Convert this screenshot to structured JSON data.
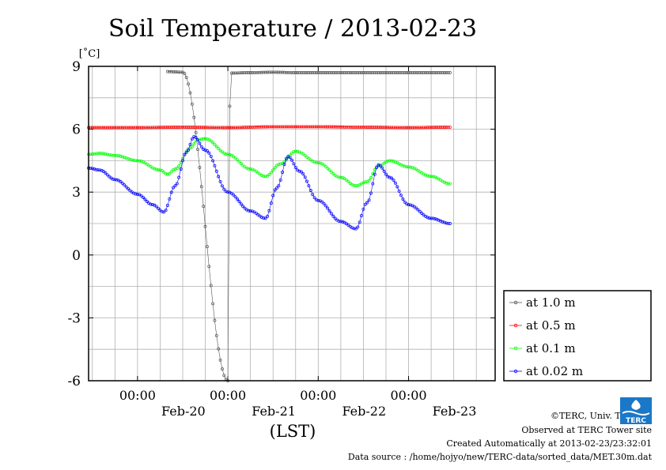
{
  "chart_data": {
    "type": "scatter",
    "title": "Soil Temperature / 2013-02-23",
    "ylabel": "[˚C]",
    "xlabel": "(LST)",
    "ylim": [
      -6,
      9
    ],
    "yticks": [
      9,
      6,
      3,
      0,
      -3,
      -6
    ],
    "ytick_labels": [
      "9",
      "6",
      "3",
      "0",
      "-3",
      "-6"
    ],
    "xlim": [
      "2013-02-19 11:00",
      "2013-02-23 23:00"
    ],
    "xticks": [
      {
        "time": "2013-02-20 00:00",
        "top": "00:00",
        "bottom": "Feb-20"
      },
      {
        "time": "2013-02-21 00:00",
        "top": "00:00",
        "bottom": "Feb-21"
      },
      {
        "time": "2013-02-22 00:00",
        "top": "00:00",
        "bottom": "Feb-22"
      },
      {
        "time": "2013-02-23 00:00",
        "top": "00:00",
        "bottom": "Feb-23"
      }
    ],
    "grid": true,
    "legend_position": "right",
    "series": [
      {
        "name": "at 1.0 m",
        "color": "#555555",
        "points": [
          [
            "2013-02-20 08:00",
            8.75
          ],
          [
            "2013-02-20 12:00",
            8.72
          ],
          [
            "2013-02-21 00:00",
            -6.0
          ],
          [
            "2013-02-21 00:30",
            7.1
          ],
          [
            "2013-02-21 01:00",
            8.68
          ],
          [
            "2013-02-21 06:00",
            8.7
          ],
          [
            "2013-02-21 12:00",
            8.72
          ],
          [
            "2013-02-21 18:00",
            8.7
          ],
          [
            "2013-02-22 00:00",
            8.7
          ],
          [
            "2013-02-22 06:00",
            8.7
          ],
          [
            "2013-02-22 12:00",
            8.7
          ],
          [
            "2013-02-22 18:00",
            8.7
          ],
          [
            "2013-02-23 00:00",
            8.7
          ],
          [
            "2013-02-23 06:00",
            8.7
          ],
          [
            "2013-02-23 11:00",
            8.7
          ]
        ]
      },
      {
        "name": "at 0.5 m",
        "color": "#ff0000",
        "points": [
          [
            "2013-02-19 11:00",
            6.08
          ],
          [
            "2013-02-20 00:00",
            6.08
          ],
          [
            "2013-02-20 12:00",
            6.1
          ],
          [
            "2013-02-21 00:00",
            6.08
          ],
          [
            "2013-02-21 12:00",
            6.12
          ],
          [
            "2013-02-22 00:00",
            6.12
          ],
          [
            "2013-02-22 12:00",
            6.1
          ],
          [
            "2013-02-23 00:00",
            6.08
          ],
          [
            "2013-02-23 11:00",
            6.1
          ]
        ]
      },
      {
        "name": "at 0.1 m",
        "color": "#00ff00",
        "points": [
          [
            "2013-02-19 11:00",
            4.8
          ],
          [
            "2013-02-19 14:00",
            4.85
          ],
          [
            "2013-02-19 18:00",
            4.75
          ],
          [
            "2013-02-20 00:00",
            4.5
          ],
          [
            "2013-02-20 06:00",
            4.05
          ],
          [
            "2013-02-20 08:00",
            3.85
          ],
          [
            "2013-02-20 10:00",
            4.1
          ],
          [
            "2013-02-20 14:00",
            5.1
          ],
          [
            "2013-02-20 16:00",
            5.5
          ],
          [
            "2013-02-20 18:00",
            5.55
          ],
          [
            "2013-02-21 00:00",
            4.8
          ],
          [
            "2013-02-21 06:00",
            4.1
          ],
          [
            "2013-02-21 10:00",
            3.75
          ],
          [
            "2013-02-21 14:00",
            4.35
          ],
          [
            "2013-02-21 18:00",
            4.95
          ],
          [
            "2013-02-22 00:00",
            4.4
          ],
          [
            "2013-02-22 06:00",
            3.7
          ],
          [
            "2013-02-22 10:00",
            3.3
          ],
          [
            "2013-02-22 13:00",
            3.5
          ],
          [
            "2013-02-22 16:00",
            4.25
          ],
          [
            "2013-02-22 19:00",
            4.5
          ],
          [
            "2013-02-23 00:00",
            4.2
          ],
          [
            "2013-02-23 06:00",
            3.75
          ],
          [
            "2013-02-23 11:00",
            3.4
          ]
        ]
      },
      {
        "name": "at 0.02 m",
        "color": "#0000ff",
        "points": [
          [
            "2013-02-19 11:00",
            4.15
          ],
          [
            "2013-02-19 14:00",
            4.05
          ],
          [
            "2013-02-19 18:00",
            3.6
          ],
          [
            "2013-02-20 00:00",
            2.9
          ],
          [
            "2013-02-20 04:00",
            2.4
          ],
          [
            "2013-02-20 07:00",
            2.05
          ],
          [
            "2013-02-20 10:00",
            3.3
          ],
          [
            "2013-02-20 13:00",
            4.9
          ],
          [
            "2013-02-20 15:00",
            5.65
          ],
          [
            "2013-02-20 18:00",
            5.0
          ],
          [
            "2013-02-21 00:00",
            3.0
          ],
          [
            "2013-02-21 06:00",
            2.1
          ],
          [
            "2013-02-21 10:00",
            1.75
          ],
          [
            "2013-02-21 13:00",
            3.2
          ],
          [
            "2013-02-21 16:00",
            4.7
          ],
          [
            "2013-02-21 19:00",
            4.0
          ],
          [
            "2013-02-22 00:00",
            2.6
          ],
          [
            "2013-02-22 06:00",
            1.6
          ],
          [
            "2013-02-22 10:00",
            1.25
          ],
          [
            "2013-02-22 13:00",
            2.5
          ],
          [
            "2013-02-22 16:00",
            4.3
          ],
          [
            "2013-02-22 19:00",
            3.7
          ],
          [
            "2013-02-23 00:00",
            2.4
          ],
          [
            "2013-02-23 06:00",
            1.75
          ],
          [
            "2013-02-23 11:00",
            1.5
          ]
        ]
      }
    ]
  },
  "footer": {
    "copyright": "©TERC, Univ. Tsukuba",
    "site": "Observed at TERC Tower site",
    "created": "Created Automatically at 2013-02-23/23:32:01",
    "source": "Data source : /home/hojyo/new/TERC-data/sorted_data/MET.30m.dat"
  },
  "logo": {
    "text": "TERC",
    "color": "#1a78c8"
  }
}
